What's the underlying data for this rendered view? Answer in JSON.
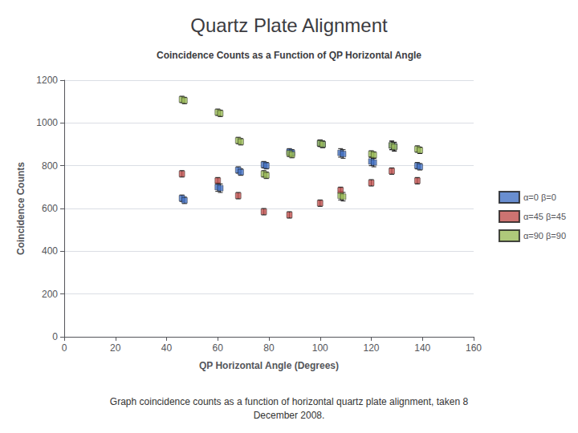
{
  "chart_data": {
    "type": "scatter",
    "title": "Quartz Plate Alignment",
    "subtitle": "Coincidence Counts as a Function of QP Horizontal Angle",
    "xlabel": "QP Horizontal Angle (Degrees)",
    "ylabel": "Coincidence Counts",
    "caption": "Graph coincidence counts as a function of horizontal quartz plate alignment, taken 8\nDecember 2008.",
    "xlim": [
      0,
      160
    ],
    "ylim": [
      0,
      1200
    ],
    "xticks": [
      0,
      20,
      40,
      60,
      80,
      100,
      120,
      140,
      160
    ],
    "yticks": [
      0,
      200,
      400,
      600,
      800,
      1000,
      1200
    ],
    "grid": "y",
    "legend": "right",
    "marker": "square",
    "series": [
      {
        "name": "α=0 β=0",
        "color": "#4472C4",
        "x": [
          46,
          47,
          60,
          61,
          68,
          69,
          78,
          79,
          88,
          89,
          100,
          101,
          108,
          109,
          120,
          121,
          128,
          129,
          138,
          139
        ],
        "values": [
          648,
          638,
          700,
          695,
          780,
          770,
          805,
          800,
          865,
          860,
          905,
          900,
          860,
          855,
          820,
          815,
          895,
          890,
          800,
          795
        ],
        "yerr": [
          15,
          15,
          20,
          20,
          15,
          15,
          15,
          15,
          15,
          15,
          15,
          15,
          20,
          20,
          20,
          20,
          20,
          20,
          15,
          15
        ]
      },
      {
        "name": "α=45 β=45",
        "color": "#C0504D",
        "x": [
          46,
          60,
          68,
          78,
          88,
          100,
          108,
          120,
          128,
          138
        ],
        "values": [
          762,
          730,
          660,
          585,
          570,
          625,
          685,
          720,
          775,
          730
        ],
        "yerr": [
          15,
          15,
          15,
          15,
          15,
          15,
          15,
          15,
          15,
          15
        ]
      },
      {
        "name": "α=90 β=90",
        "color": "#9BBB59",
        "x": [
          46,
          47,
          60,
          61,
          68,
          69,
          78,
          79,
          88,
          89,
          100,
          101,
          108,
          109,
          120,
          121,
          128,
          129,
          138,
          139
        ],
        "values": [
          1110,
          1105,
          1050,
          1045,
          918,
          912,
          762,
          755,
          858,
          852,
          905,
          900,
          660,
          655,
          855,
          850,
          895,
          888,
          878,
          872
        ],
        "yerr": [
          15,
          15,
          15,
          15,
          15,
          15,
          15,
          15,
          15,
          15,
          15,
          15,
          20,
          20,
          15,
          15,
          20,
          20,
          15,
          15
        ]
      }
    ]
  }
}
